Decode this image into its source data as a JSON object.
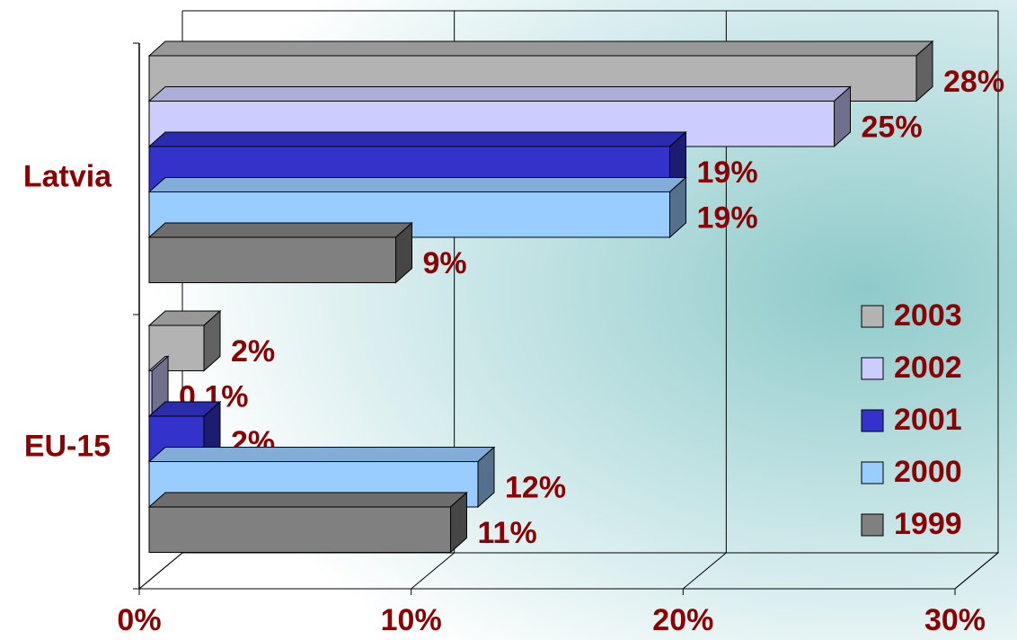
{
  "chart_data": {
    "type": "bar",
    "orientation": "horizontal",
    "style": "3d",
    "categories": [
      "Latvia",
      "EU-15"
    ],
    "series": [
      {
        "name": "2003",
        "color": "#b3b3b3",
        "values": [
          28,
          2
        ],
        "value_labels": [
          "28%",
          "2%"
        ]
      },
      {
        "name": "2002",
        "color": "#ccccff",
        "values": [
          25,
          0.1
        ],
        "value_labels": [
          "25%",
          "0,1%"
        ]
      },
      {
        "name": "2001",
        "color": "#3333cc",
        "values": [
          19,
          2
        ],
        "value_labels": [
          "19%",
          "2%"
        ]
      },
      {
        "name": "2000",
        "color": "#99ccff",
        "values": [
          19,
          12
        ],
        "value_labels": [
          "19%",
          "12%"
        ]
      },
      {
        "name": "1999",
        "color": "#808080",
        "values": [
          9,
          11
        ],
        "value_labels": [
          "9%",
          "11%"
        ]
      }
    ],
    "xlim": [
      0,
      30
    ],
    "xticks": [
      {
        "value": 0,
        "label": "0%"
      },
      {
        "value": 10,
        "label": "10%"
      },
      {
        "value": 20,
        "label": "20%"
      },
      {
        "value": 30,
        "label": "30%"
      }
    ],
    "grid": true,
    "legend": "right"
  }
}
